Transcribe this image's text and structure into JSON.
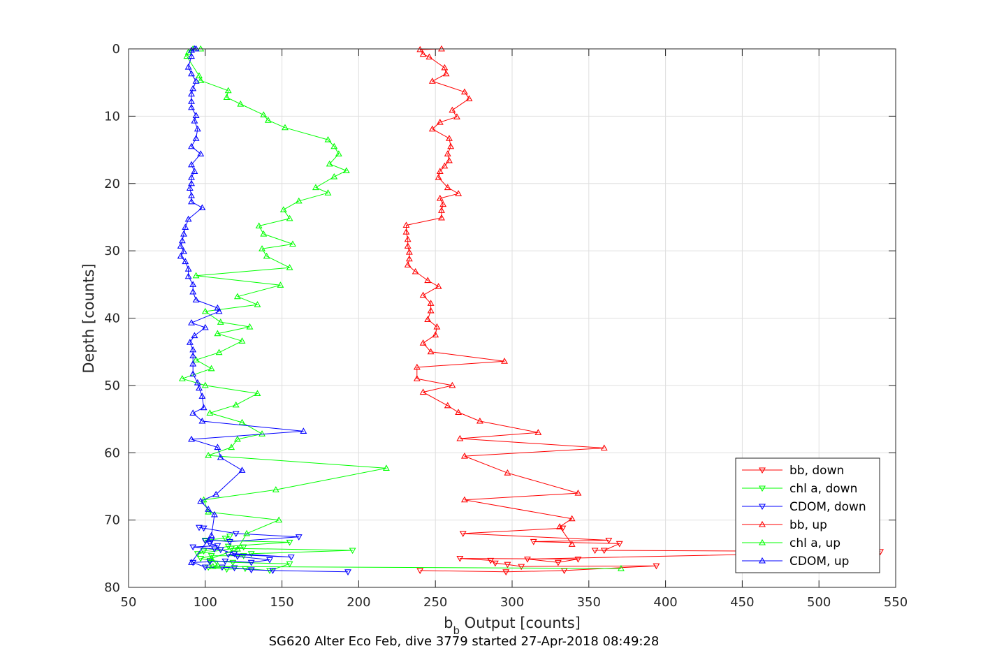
{
  "chart_data": {
    "type": "line",
    "title": "SG620 Alter Eco Feb, dive 3779 started 27-Apr-2018 08:49:28",
    "xlabel_main": "b",
    "xlabel_sub": "b",
    "xlabel_rest": " Output [counts]",
    "ylabel": "Depth [counts]",
    "xlim": [
      50,
      550
    ],
    "ylim": [
      0,
      80
    ],
    "y_reversed": true,
    "xticks": [
      50,
      100,
      150,
      200,
      250,
      300,
      350,
      400,
      450,
      500,
      550
    ],
    "yticks": [
      0,
      10,
      20,
      30,
      40,
      50,
      60,
      70,
      80
    ],
    "grid": true,
    "legend_position": "lower-right",
    "series": [
      {
        "name": "bb, down",
        "color": "#ff0000",
        "marker": "triangle-down",
        "points": [
          [
            240,
            77.5
          ],
          [
            296,
            77.7
          ],
          [
            334,
            77.5
          ],
          [
            394,
            76.8
          ],
          [
            306,
            76.9
          ],
          [
            297,
            76.6
          ],
          [
            289,
            76.4
          ],
          [
            286,
            76
          ],
          [
            266,
            75.7
          ],
          [
            343,
            75.8
          ],
          [
            330,
            76.3
          ],
          [
            310,
            75.8
          ],
          [
            540,
            74.7
          ],
          [
            354,
            74.5
          ],
          [
            360,
            74.5
          ],
          [
            370,
            73.5
          ],
          [
            314,
            73.2
          ],
          [
            363,
            73
          ],
          [
            268,
            72
          ],
          [
            333,
            71.2
          ]
        ]
      },
      {
        "name": "chl a, down",
        "color": "#00ff00",
        "marker": "triangle-down",
        "points": [
          [
            102,
            77
          ],
          [
            114,
            77.3
          ],
          [
            126,
            77.2
          ],
          [
            142,
            77.5
          ],
          [
            155,
            76.5
          ],
          [
            118,
            76.3
          ],
          [
            103,
            76
          ],
          [
            97,
            75.7
          ],
          [
            104,
            75.3
          ],
          [
            125,
            75.3
          ],
          [
            130,
            75
          ],
          [
            196,
            74.5
          ],
          [
            117,
            74.2
          ],
          [
            125,
            74
          ],
          [
            95,
            75
          ],
          [
            99,
            74.6
          ],
          [
            115,
            73.9
          ],
          [
            155,
            73.3
          ],
          [
            100,
            73
          ],
          [
            113,
            72.7
          ],
          [
            116,
            72.4
          ]
        ]
      },
      {
        "name": "CDOM, down",
        "color": "#0000ff",
        "marker": "triangle-down",
        "points": [
          [
            193,
            77.7
          ],
          [
            144,
            77.5
          ],
          [
            130,
            77.4
          ],
          [
            119,
            77.1
          ],
          [
            111,
            77
          ],
          [
            100,
            77
          ],
          [
            92,
            76.3
          ],
          [
            103,
            76.2
          ],
          [
            113,
            76.1
          ],
          [
            130,
            76.3
          ],
          [
            142,
            75.9
          ],
          [
            121,
            75.4
          ],
          [
            115,
            75.1
          ],
          [
            156,
            75.5
          ],
          [
            119,
            75
          ],
          [
            110,
            74.4
          ],
          [
            106,
            74.3
          ],
          [
            92,
            74
          ],
          [
            108,
            73.8
          ],
          [
            103,
            73.5
          ],
          [
            100,
            73.1
          ],
          [
            104,
            73
          ],
          [
            116,
            73.2
          ],
          [
            161,
            72.5
          ],
          [
            120,
            72
          ],
          [
            99,
            71.2
          ],
          [
            96,
            71.1
          ]
        ]
      },
      {
        "name": "bb, up",
        "color": "#ff0000",
        "marker": "triangle-up",
        "points": [
          [
            339,
            73.6
          ],
          [
            331,
            71
          ],
          [
            339,
            69.8
          ],
          [
            269,
            67
          ],
          [
            343,
            66
          ],
          [
            297,
            63
          ],
          [
            269,
            60.5
          ],
          [
            360,
            59.3
          ],
          [
            266,
            57.9
          ],
          [
            317,
            57
          ],
          [
            279,
            55.3
          ],
          [
            265,
            54
          ],
          [
            258,
            53
          ],
          [
            242,
            51
          ],
          [
            261,
            50
          ],
          [
            238,
            49
          ],
          [
            238,
            47.3
          ],
          [
            295,
            46.4
          ],
          [
            247,
            45
          ],
          [
            242,
            43.7
          ],
          [
            250,
            42.5
          ],
          [
            251,
            41.3
          ],
          [
            245,
            40.2
          ],
          [
            247,
            38.9
          ],
          [
            247,
            37.8
          ],
          [
            242,
            36.6
          ],
          [
            252,
            35.3
          ],
          [
            245,
            34.4
          ],
          [
            237,
            33.1
          ],
          [
            232,
            32.1
          ],
          [
            233,
            31.2
          ],
          [
            233,
            30.2
          ],
          [
            232,
            29.3
          ],
          [
            232,
            28.3
          ],
          [
            231,
            27.2
          ],
          [
            231,
            26.2
          ],
          [
            254,
            25.1
          ],
          [
            254,
            24
          ],
          [
            255,
            23.1
          ],
          [
            253,
            22.2
          ],
          [
            265,
            21.5
          ],
          [
            258,
            20.6
          ],
          [
            252,
            19.1
          ],
          [
            253,
            18.2
          ],
          [
            256,
            17.4
          ],
          [
            259,
            16.6
          ],
          [
            258,
            15.6
          ],
          [
            260,
            14.5
          ],
          [
            259,
            13.3
          ],
          [
            248,
            11.9
          ],
          [
            253,
            10.9
          ],
          [
            264,
            10.1
          ],
          [
            261,
            9.1
          ],
          [
            272,
            7.4
          ],
          [
            269,
            6.4
          ],
          [
            248,
            4.8
          ],
          [
            257,
            3.7
          ],
          [
            256,
            2.8
          ],
          [
            246,
            1.2
          ],
          [
            242,
            0.8
          ],
          [
            240,
            0.1
          ],
          [
            254,
            0
          ]
        ]
      },
      {
        "name": "chl a, up",
        "color": "#00ff00",
        "marker": "triangle-up",
        "points": [
          [
            371,
            77.2
          ],
          [
            105,
            76.9
          ],
          [
            108,
            76.7
          ],
          [
            104,
            75.7
          ],
          [
            121,
            74.3
          ],
          [
            127,
            72
          ],
          [
            148,
            70
          ],
          [
            102,
            68.8
          ],
          [
            99,
            67
          ],
          [
            146,
            65.5
          ],
          [
            218,
            62.3
          ],
          [
            102,
            60.4
          ],
          [
            117,
            59.2
          ],
          [
            121,
            58
          ],
          [
            137,
            57.2
          ],
          [
            124,
            55.5
          ],
          [
            103,
            54.1
          ],
          [
            120,
            52.9
          ],
          [
            134,
            51.2
          ],
          [
            100,
            50
          ],
          [
            85,
            49
          ],
          [
            104,
            47.5
          ],
          [
            94,
            46.2
          ],
          [
            109,
            45.1
          ],
          [
            124,
            43.4
          ],
          [
            108,
            42.3
          ],
          [
            129,
            41.3
          ],
          [
            110,
            40.6
          ],
          [
            100,
            39
          ],
          [
            134,
            38
          ],
          [
            121,
            36.8
          ],
          [
            149,
            35.1
          ],
          [
            94,
            33.7
          ],
          [
            155,
            32.5
          ],
          [
            140,
            30.8
          ],
          [
            137,
            29.7
          ],
          [
            157,
            29
          ],
          [
            138,
            27.5
          ],
          [
            135,
            26.3
          ],
          [
            155,
            25.2
          ],
          [
            151,
            23.9
          ],
          [
            161,
            22.6
          ],
          [
            180,
            21.4
          ],
          [
            172,
            20.6
          ],
          [
            184,
            19
          ],
          [
            192,
            18.1
          ],
          [
            181,
            17.1
          ],
          [
            187,
            15.6
          ],
          [
            184,
            14.5
          ],
          [
            180,
            13.5
          ],
          [
            152,
            11.7
          ],
          [
            141,
            10.6
          ],
          [
            138,
            9.8
          ],
          [
            123,
            8.2
          ],
          [
            114,
            7.2
          ],
          [
            115,
            6.2
          ],
          [
            97,
            4.7
          ],
          [
            96,
            4
          ],
          [
            88,
            1.1
          ],
          [
            89,
            0.5
          ],
          [
            92,
            0
          ],
          [
            97,
            0
          ]
        ]
      },
      {
        "name": "CDOM, up",
        "color": "#0000ff",
        "marker": "triangle-up",
        "points": [
          [
            91,
            76.3
          ],
          [
            104,
            72.3
          ],
          [
            106,
            69.2
          ],
          [
            102,
            68.4
          ],
          [
            97,
            67.2
          ],
          [
            107,
            66.2
          ],
          [
            124,
            62.6
          ],
          [
            110,
            60.7
          ],
          [
            108,
            59.2
          ],
          [
            91,
            58
          ],
          [
            164,
            56.8
          ],
          [
            98,
            55.3
          ],
          [
            92,
            54.1
          ],
          [
            99,
            53.3
          ],
          [
            98,
            51.6
          ],
          [
            96,
            50.4
          ],
          [
            95,
            49.6
          ],
          [
            92,
            48.3
          ],
          [
            92,
            46.8
          ],
          [
            92,
            45.6
          ],
          [
            92,
            44.7
          ],
          [
            90,
            43.6
          ],
          [
            93,
            42.6
          ],
          [
            100,
            41.4
          ],
          [
            91,
            40.7
          ],
          [
            109,
            39
          ],
          [
            108,
            38.5
          ],
          [
            94,
            37.3
          ],
          [
            92,
            36.1
          ],
          [
            92,
            35
          ],
          [
            89,
            33.8
          ],
          [
            89,
            32.7
          ],
          [
            87,
            31.6
          ],
          [
            84,
            30.8
          ],
          [
            86,
            30.1
          ],
          [
            84,
            29.3
          ],
          [
            85,
            28.5
          ],
          [
            86,
            27.5
          ],
          [
            87,
            26.5
          ],
          [
            89,
            25.3
          ],
          [
            98,
            23.6
          ],
          [
            91,
            22.7
          ],
          [
            91,
            21.8
          ],
          [
            90,
            20.7
          ],
          [
            91,
            20
          ],
          [
            91,
            19.1
          ],
          [
            93,
            18.2
          ],
          [
            91,
            17.2
          ],
          [
            97,
            15.6
          ],
          [
            91,
            14.5
          ],
          [
            94,
            13.3
          ],
          [
            95,
            11.9
          ],
          [
            93,
            10.7
          ],
          [
            94,
            9.9
          ],
          [
            91,
            8.7
          ],
          [
            91,
            7.8
          ],
          [
            91,
            6.7
          ],
          [
            92,
            5.9
          ],
          [
            94,
            4.8
          ],
          [
            91,
            3.7
          ],
          [
            89,
            2.7
          ],
          [
            91,
            1.1
          ],
          [
            91,
            0.2
          ],
          [
            94,
            0
          ],
          [
            93,
            0
          ]
        ]
      }
    ]
  }
}
